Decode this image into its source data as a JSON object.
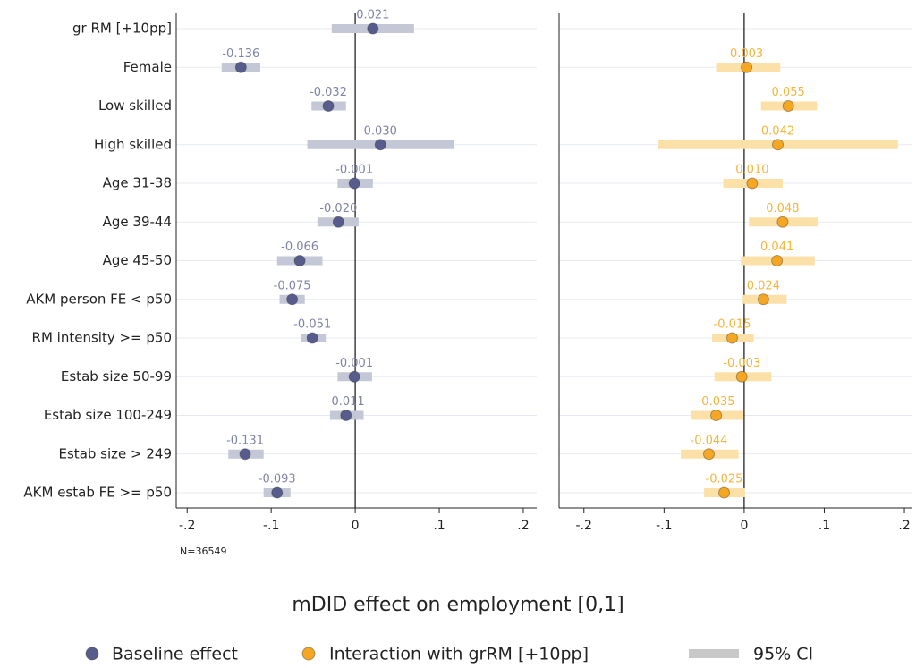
{
  "chart_data": [
    {
      "type": "coefplot",
      "categories": [
        "gr RM [+10pp]",
        "Female",
        "Low skilled",
        "High skilled",
        "Age 31-38",
        "Age 39-44",
        "Age 45-50",
        "AKM person FE < p50",
        "RM intensity >= p50",
        "Estab size 50-99",
        "Estab size 100-249",
        "Estab size > 249",
        "AKM estab FE >= p50"
      ],
      "series": [
        {
          "name": "Baseline effect",
          "color": "#575c8c",
          "ci_color": "#c3c7d6",
          "label_color": "#7f83a6",
          "values": [
            0.021,
            -0.136,
            -0.032,
            0.03,
            -0.001,
            -0.02,
            -0.066,
            -0.075,
            -0.051,
            -0.001,
            -0.011,
            -0.131,
            -0.093
          ],
          "value_labels": [
            "0.021",
            "-0.136",
            "-0.032",
            "0.030",
            "-0.001",
            "-0.020",
            "-0.066",
            "-0.075",
            "-0.051",
            "-0.001",
            "-0.011",
            "-0.131",
            "-0.093"
          ],
          "ci_low": [
            -0.028,
            -0.159,
            -0.052,
            -0.057,
            -0.021,
            -0.045,
            -0.093,
            -0.09,
            -0.065,
            -0.021,
            -0.03,
            -0.151,
            -0.109
          ],
          "ci_high": [
            0.07,
            -0.113,
            -0.011,
            0.118,
            0.021,
            0.004,
            -0.039,
            -0.06,
            -0.035,
            0.02,
            0.01,
            -0.109,
            -0.077
          ]
        }
      ],
      "xlim": [
        -0.213,
        0.216
      ],
      "xticks": [
        {
          "value": -0.2,
          "label": "-.2"
        },
        {
          "value": -0.1,
          "label": "-.1"
        },
        0,
        {
          "value": 0.1,
          "label": ".1"
        },
        {
          "value": 0.2,
          "label": ".2"
        }
      ],
      "note": "N=36549"
    },
    {
      "type": "coefplot",
      "series": [
        {
          "name": "Interaction with grRM [+10pp]",
          "color": "#f5a623",
          "ci_color": "#fbe0a8",
          "label_color": "#f5b53c",
          "values": [
            null,
            0.003,
            0.055,
            0.042,
            0.01,
            0.048,
            0.041,
            0.024,
            -0.015,
            -0.003,
            -0.035,
            -0.044,
            -0.025
          ],
          "value_labels": [
            null,
            "0.003",
            "0.055",
            "0.042",
            "0.010",
            "0.048",
            "0.041",
            "0.024",
            "-0.015",
            "-0.003",
            "-0.035",
            "-0.044",
            "-0.025"
          ],
          "ci_low": [
            null,
            -0.035,
            0.021,
            -0.107,
            -0.026,
            0.006,
            -0.004,
            -0.002,
            -0.04,
            -0.037,
            -0.066,
            -0.079,
            -0.05
          ],
          "ci_high": [
            null,
            0.045,
            0.091,
            0.192,
            0.048,
            0.092,
            0.088,
            0.053,
            0.012,
            0.034,
            -0.001,
            -0.007,
            0.001
          ]
        }
      ],
      "xlim": [
        -0.231,
        0.21
      ],
      "xticks": [
        {
          "value": -0.2,
          "label": "-.2"
        },
        {
          "value": -0.1,
          "label": "-.1"
        },
        0,
        {
          "value": 0.1,
          "label": ".1"
        },
        {
          "value": 0.2,
          "label": ".2"
        }
      ]
    }
  ],
  "x_label": "mDID effect on employment [0,1]",
  "ci_legend": {
    "name": "95% CI",
    "color": "#c8c8c8"
  }
}
